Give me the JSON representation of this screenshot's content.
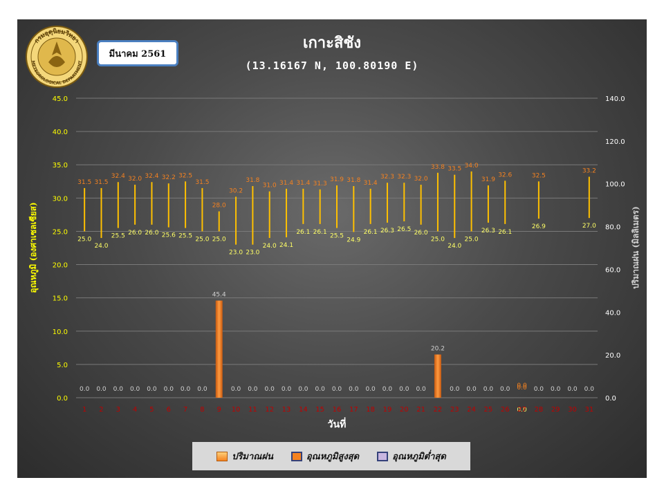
{
  "header": {
    "month_label": "มีนาคม 2561",
    "title": "เกาะสิชัง",
    "subtitle": "(13.16167 N, 100.80190 E)",
    "logo_text_top": "กรมอุตุนิยมวิทยา",
    "logo_text_bottom": "METEOROLOGICAL DEPARTMENT"
  },
  "legend": {
    "rain": "ปริมาณฝน",
    "tmax": "อุณหภูมิสูงสุด",
    "tmin": "อุณหภูมิต่ำสุด"
  },
  "colors": {
    "temp_bar": "#ffc000",
    "tmax_label": "#f58220",
    "tmin_label": "#ffff66",
    "rain_bar": "#f58220",
    "left_axis": "#ffff00",
    "right_axis": "#ffffff",
    "x_tick": "#c00000"
  },
  "chart_data": {
    "type": "bar",
    "xlabel": "วันที่",
    "ylabel_left": "อุณหภูมิ (องศาเซลเซียส)",
    "ylabel_right": "ปริมาณฝน (มิลลิเมตร)",
    "ylim_left": [
      0,
      45
    ],
    "ylim_right": [
      0,
      140
    ],
    "yticks_left": [
      "0.0",
      "5.0",
      "10.0",
      "15.0",
      "20.0",
      "25.0",
      "30.0",
      "35.0",
      "40.0",
      "45.0"
    ],
    "yticks_right": [
      "0.0",
      "20.0",
      "40.0",
      "60.0",
      "80.0",
      "100.0",
      "120.0",
      "140.0"
    ],
    "grid": true,
    "legend_position": "bottom",
    "categories": [
      "1",
      "2",
      "3",
      "4",
      "5",
      "6",
      "7",
      "8",
      "9",
      "10",
      "11",
      "12",
      "13",
      "14",
      "15",
      "16",
      "17",
      "18",
      "19",
      "20",
      "21",
      "22",
      "23",
      "24",
      "25",
      "26",
      "27",
      "28",
      "29",
      "30",
      "31"
    ],
    "tmax": [
      31.5,
      31.5,
      32.4,
      32.0,
      32.4,
      32.2,
      32.5,
      31.5,
      28.0,
      30.2,
      31.8,
      31.0,
      31.4,
      31.4,
      31.3,
      31.9,
      31.8,
      31.4,
      32.3,
      32.3,
      32.0,
      33.8,
      33.5,
      34.0,
      31.9,
      32.6,
      null,
      32.5,
      null,
      null,
      33.2
    ],
    "tmin": [
      25.0,
      24.0,
      25.5,
      26.0,
      26.0,
      25.6,
      25.5,
      25.0,
      25.0,
      23.0,
      23.0,
      24.0,
      24.1,
      26.1,
      26.1,
      25.5,
      24.9,
      26.1,
      26.3,
      26.5,
      26.0,
      25.0,
      24.0,
      25.0,
      26.3,
      26.1,
      null,
      26.9,
      null,
      null,
      27.0
    ],
    "rain": [
      0.0,
      0.0,
      0.0,
      0.0,
      0.0,
      0.0,
      0.0,
      0.0,
      45.4,
      0.0,
      0.0,
      0.0,
      0.0,
      0.0,
      0.0,
      0.0,
      0.0,
      0.0,
      0.0,
      0.0,
      0.0,
      20.2,
      0.0,
      0.0,
      0.0,
      0.0,
      0.0,
      0.0,
      0.0,
      0.0,
      0.0
    ],
    "rain_labels": [
      "0.0",
      "0.0",
      "0.0",
      "0.0",
      "0.0",
      "0.0",
      "0.0",
      "0.0",
      "45.4",
      "0.0",
      "0.0",
      "0.0",
      "0.0",
      "0.0",
      "0.0",
      "0.0",
      "0.0",
      "0.0",
      "0.0",
      "0.0",
      "0.0",
      "20.2",
      "0.0",
      "0.0",
      "0.0",
      "0.0",
      "0.0",
      "0.0",
      "0.0",
      "0.0",
      "0.0"
    ],
    "day27_labels": [
      "0.0",
      "0.0"
    ]
  }
}
